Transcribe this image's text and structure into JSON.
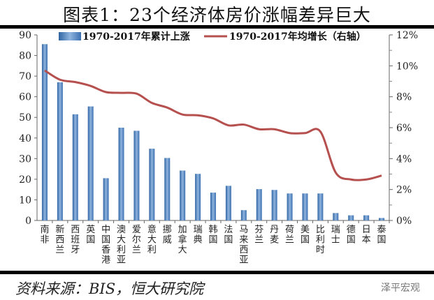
{
  "title": "图表1：23个经济体房价涨幅差异巨大",
  "source": "资料来源：BIS，恒大研究院",
  "watermark": "泽平宏观",
  "chart_data": {
    "type": "bar+line",
    "categories": [
      "南非",
      "新西兰",
      "西班牙",
      "英国",
      "中国香港",
      "澳大利亚",
      "爱尔兰",
      "意大利",
      "挪威",
      "加拿大",
      "瑞典",
      "韩国",
      "法国",
      "马来西亚",
      "芬兰",
      "丹麦",
      "荷兰",
      "美国",
      "比利时",
      "瑞士",
      "德国",
      "日本",
      "泰国"
    ],
    "series": [
      {
        "name": "1970-2017年累计上涨",
        "type": "bar",
        "axis": "left",
        "color": "#4a7fb8",
        "values": [
          85.5,
          67,
          51.5,
          55.3,
          20.5,
          45,
          43.5,
          34.8,
          30.3,
          24.2,
          22.6,
          13.5,
          16.8,
          5,
          15.2,
          14.8,
          13.1,
          13.1,
          13.1,
          3.6,
          2.5,
          2.5,
          1.2
        ]
      },
      {
        "name": "1970-2017年均增长（右轴）",
        "type": "line",
        "axis": "right",
        "color": "#b5504e",
        "values": [
          9.7,
          9.1,
          8.95,
          8.7,
          8.3,
          8.25,
          8.2,
          7.6,
          7.3,
          6.85,
          6.8,
          6.6,
          6.15,
          6.2,
          5.9,
          5.9,
          5.65,
          5.65,
          5.75,
          3.1,
          2.65,
          2.65,
          2.9
        ]
      }
    ],
    "ylim_left": [
      0,
      90
    ],
    "yticks_left": [
      "0",
      "10",
      "20",
      "30",
      "40",
      "50",
      "60",
      "70",
      "80",
      "90"
    ],
    "ylim_right": [
      0,
      12
    ],
    "yticks_right": [
      "0%",
      "2%",
      "4%",
      "6%",
      "8%",
      "10%",
      "12%"
    ],
    "legend": "top",
    "grid": false
  }
}
